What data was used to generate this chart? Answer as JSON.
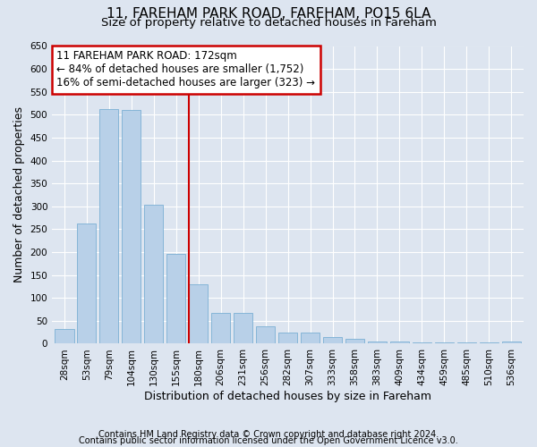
{
  "title1": "11, FAREHAM PARK ROAD, FAREHAM, PO15 6LA",
  "title2": "Size of property relative to detached houses in Fareham",
  "xlabel": "Distribution of detached houses by size in Fareham",
  "ylabel": "Number of detached properties",
  "categories": [
    "28sqm",
    "53sqm",
    "79sqm",
    "104sqm",
    "130sqm",
    "155sqm",
    "180sqm",
    "206sqm",
    "231sqm",
    "256sqm",
    "282sqm",
    "307sqm",
    "333sqm",
    "358sqm",
    "383sqm",
    "409sqm",
    "434sqm",
    "459sqm",
    "485sqm",
    "510sqm",
    "536sqm"
  ],
  "values": [
    33,
    263,
    513,
    510,
    303,
    197,
    130,
    67,
    67,
    38,
    25,
    25,
    15,
    10,
    5,
    5,
    3,
    3,
    3,
    3,
    5
  ],
  "bar_color": "#b8d0e8",
  "bar_edge_color": "#7aafd4",
  "vline_color": "#cc0000",
  "annotation_text": "11 FAREHAM PARK ROAD: 172sqm\n← 84% of detached houses are smaller (1,752)\n16% of semi-detached houses are larger (323) →",
  "annotation_box_color": "#cc0000",
  "ylim": [
    0,
    650
  ],
  "yticks": [
    0,
    50,
    100,
    150,
    200,
    250,
    300,
    350,
    400,
    450,
    500,
    550,
    600,
    650
  ],
  "background_color": "#dde5f0",
  "plot_bg_color": "#dde5f0",
  "footer1": "Contains HM Land Registry data © Crown copyright and database right 2024.",
  "footer2": "Contains public sector information licensed under the Open Government Licence v3.0.",
  "title1_fontsize": 11,
  "title2_fontsize": 9.5,
  "xlabel_fontsize": 9,
  "ylabel_fontsize": 9,
  "tick_fontsize": 7.5,
  "annotation_fontsize": 8.5,
  "footer_fontsize": 7
}
